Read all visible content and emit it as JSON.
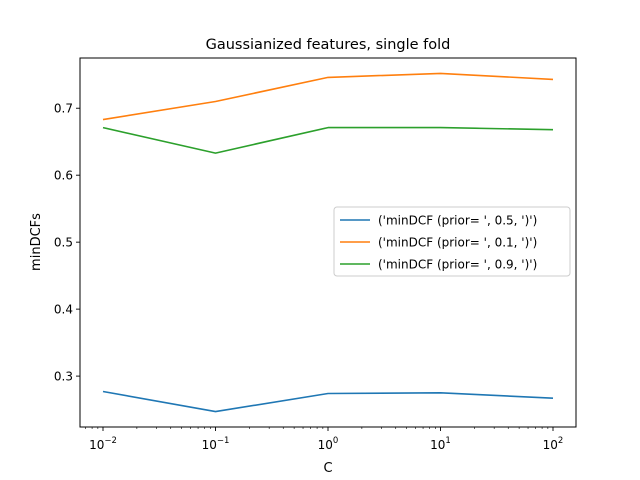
{
  "chart_data": {
    "type": "line",
    "title": "Gaussianized features, single fold",
    "xlabel": "C",
    "ylabel": "minDCFs",
    "xscale": "log",
    "x": [
      0.01,
      0.1,
      1,
      10,
      100
    ],
    "x_tick_labels": [
      {
        "base": "10",
        "exp": "−2"
      },
      {
        "base": "10",
        "exp": "−1"
      },
      {
        "base": "10",
        "exp": "0"
      },
      {
        "base": "10",
        "exp": "1"
      },
      {
        "base": "10",
        "exp": "2"
      }
    ],
    "y_ticks": [
      0.3,
      0.4,
      0.5,
      0.6,
      0.7
    ],
    "y_tick_labels": [
      "0.3",
      "0.4",
      "0.5",
      "0.6",
      "0.7"
    ],
    "ylim": [
      0.224,
      0.775
    ],
    "grid": false,
    "legend_position": "center-right",
    "series": [
      {
        "name": "('minDCF (prior= ', 0.5, ')')",
        "color": "#1f77b4",
        "values": [
          0.277,
          0.247,
          0.274,
          0.275,
          0.267
        ]
      },
      {
        "name": "('minDCF (prior= ', 0.1, ')')",
        "color": "#ff7f0e",
        "values": [
          0.683,
          0.71,
          0.746,
          0.752,
          0.743
        ]
      },
      {
        "name": "('minDCF (prior= ', 0.9, ')')",
        "color": "#2ca02c",
        "values": [
          0.671,
          0.633,
          0.671,
          0.671,
          0.668
        ]
      }
    ]
  }
}
